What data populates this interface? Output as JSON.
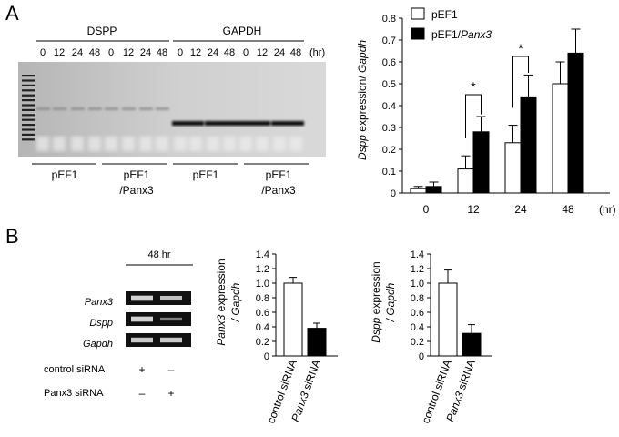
{
  "panel_labels": {
    "a": "A",
    "b": "B"
  },
  "gel_a": {
    "group_left": "DSPP",
    "group_right": "GAPDH",
    "hr_unit": "(hr)",
    "lanes": [
      "0",
      "12",
      "24",
      "48",
      "0",
      "12",
      "24",
      "48",
      "0",
      "12",
      "24",
      "48",
      "0",
      "12",
      "24",
      "48"
    ],
    "bottom_labels": [
      {
        "line1": "pEF1",
        "line2": ""
      },
      {
        "line1": "pEF1",
        "line2": "/Panx3"
      },
      {
        "line1": "pEF1",
        "line2": ""
      },
      {
        "line1": "pEF1",
        "line2": "/Panx3"
      }
    ]
  },
  "gel_b": {
    "time_label": "48 hr",
    "genes": [
      "Panx3",
      "Dspp",
      "Gapdh"
    ],
    "rows": [
      {
        "label": "control siRNA",
        "marks": [
          "+",
          "–"
        ]
      },
      {
        "label": "Panx3 siRNA",
        "marks": [
          "–",
          "+"
        ]
      }
    ]
  },
  "chart_data": [
    {
      "type": "bar",
      "categories": [
        "0",
        "12",
        "24",
        "48"
      ],
      "x_unit": "(hr)",
      "series": [
        {
          "name": "pEF1",
          "values": [
            0.02,
            0.11,
            0.23,
            0.5
          ],
          "errors": [
            0.01,
            0.06,
            0.08,
            0.1
          ],
          "color": "#ffffff"
        },
        {
          "name_plain": "pEF1/",
          "name_italic": "Panx3",
          "values": [
            0.03,
            0.28,
            0.44,
            0.64
          ],
          "errors": [
            0.02,
            0.07,
            0.1,
            0.11
          ],
          "color": "#000000"
        }
      ],
      "ylabel_italic_1": "Dspp",
      "ylabel_plain": " expression/ ",
      "ylabel_italic_2": "Gapdh",
      "ylim": [
        0,
        0.8
      ],
      "yticks": [
        "0",
        "0.1",
        "0.2",
        "0.3",
        "0.4",
        "0.5",
        "0.6",
        "0.7",
        "0.8"
      ],
      "annotations": [
        "*",
        "*"
      ],
      "legend_position": "top-left"
    },
    {
      "type": "bar",
      "categories": [
        "control siRNA",
        "Panx3 siRNA"
      ],
      "values": [
        1.0,
        0.38
      ],
      "errors": [
        0.08,
        0.07
      ],
      "colors": [
        "#ffffff",
        "#000000"
      ],
      "ylabel_italic": "Panx3",
      "ylabel_rest": " expression",
      "ylabel_line2": "/ Gapdh",
      "ylim": [
        0,
        1.4
      ],
      "yticks": [
        "0",
        "0.2",
        "0.4",
        "0.6",
        "0.8",
        "1.0",
        "1.2",
        "1.4"
      ]
    },
    {
      "type": "bar",
      "categories": [
        "control siRNA",
        "Panx3 siRNA"
      ],
      "values": [
        1.0,
        0.31
      ],
      "errors": [
        0.18,
        0.12
      ],
      "colors": [
        "#ffffff",
        "#000000"
      ],
      "ylabel_italic": "Dspp",
      "ylabel_rest": " expression",
      "ylabel_line2": "/ Gapdh",
      "ylim": [
        0,
        1.4
      ],
      "yticks": [
        "0",
        "0.2",
        "0.4",
        "0.6",
        "0.8",
        "1.0",
        "1.2",
        "1.4"
      ]
    }
  ]
}
